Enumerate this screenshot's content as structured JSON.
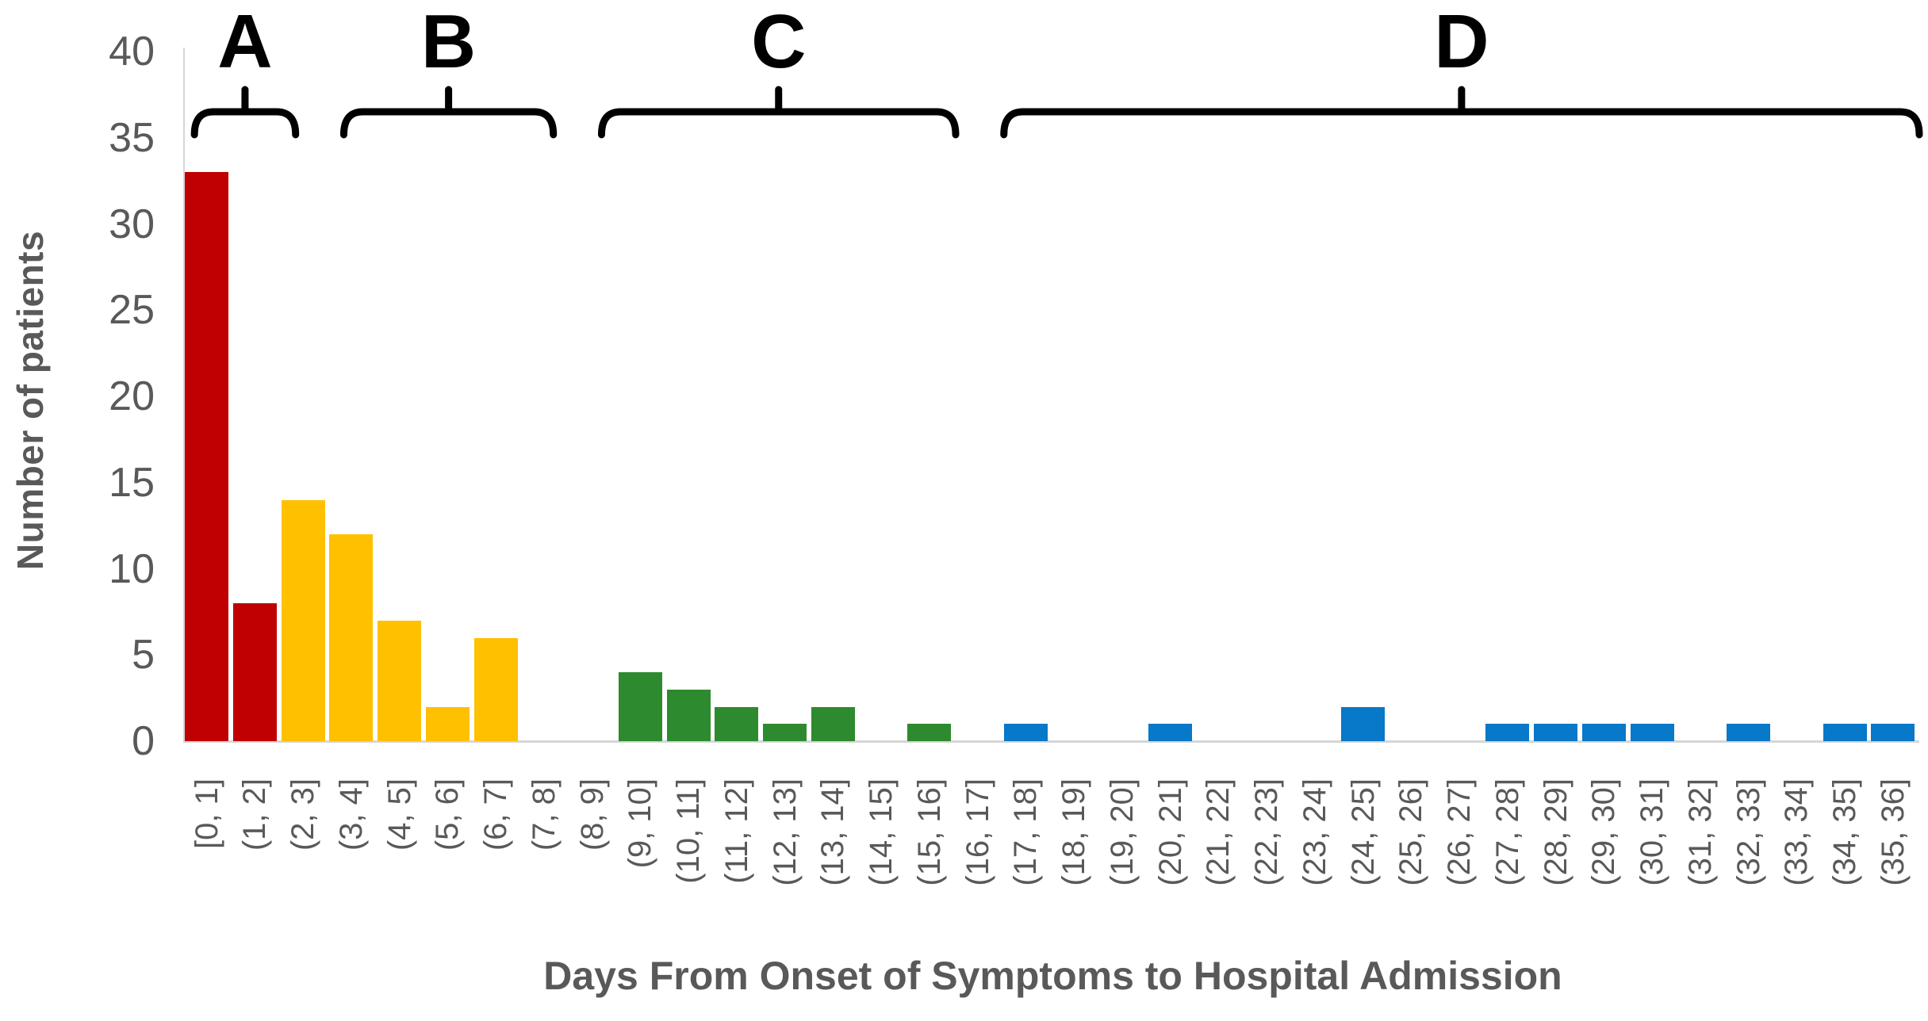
{
  "chart_data": {
    "type": "bar",
    "title": "",
    "xlabel": "Days From Onset of Symptoms to Hospital Admission",
    "ylabel": "Number of patients",
    "ylim": [
      0,
      40
    ],
    "yticks": [
      0,
      5,
      10,
      15,
      20,
      25,
      30,
      35,
      40
    ],
    "grid": false,
    "legend": "none",
    "categories": [
      "[0, 1]",
      "(1, 2]",
      "(2, 3]",
      "(3, 4]",
      "(4, 5]",
      "(5, 6]",
      "(6, 7]",
      "(7, 8]",
      "(8, 9]",
      "(9, 10]",
      "(10, 11]",
      "(11, 12]",
      "(12, 13]",
      "(13, 14]",
      "(14, 15]",
      "(15, 16]",
      "(16, 17]",
      "(17, 18]",
      "(18, 19]",
      "(19, 20]",
      "(20, 21]",
      "(21, 22]",
      "(22, 23]",
      "(23, 24]",
      "(24, 25]",
      "(25, 26]",
      "(26, 27]",
      "(27, 28]",
      "(28, 29]",
      "(29, 30]",
      "(30, 31]",
      "(31, 32]",
      "(32, 33]",
      "(33, 34]",
      "(34, 35]",
      "(35, 36]"
    ],
    "values": [
      33,
      8,
      14,
      12,
      7,
      2,
      6,
      0,
      0,
      4,
      3,
      2,
      1,
      2,
      0,
      1,
      0,
      1,
      0,
      0,
      1,
      0,
      0,
      0,
      2,
      0,
      0,
      1,
      1,
      1,
      1,
      0,
      1,
      0,
      1,
      1
    ],
    "groups": [
      {
        "label": "A",
        "color": "#C00000",
        "start_bin": 0,
        "end_bin": 1,
        "brace_span": [
          0.2,
          2.3
        ]
      },
      {
        "label": "B",
        "color": "#FFC000",
        "start_bin": 2,
        "end_bin": 8,
        "brace_span": [
          3.3,
          7.65
        ]
      },
      {
        "label": "C",
        "color": "#2E8A2E",
        "start_bin": 9,
        "end_bin": 16,
        "brace_span": [
          8.65,
          16.0
        ]
      },
      {
        "label": "D",
        "color": "#0878C8",
        "start_bin": 17,
        "end_bin": 35,
        "brace_span": [
          17.0,
          36.0
        ]
      }
    ],
    "colors": {
      "axis_line": "#D6D6D6",
      "tick_text": "#595959",
      "axis_title_text": "#595959",
      "annotation": "#000000"
    }
  }
}
